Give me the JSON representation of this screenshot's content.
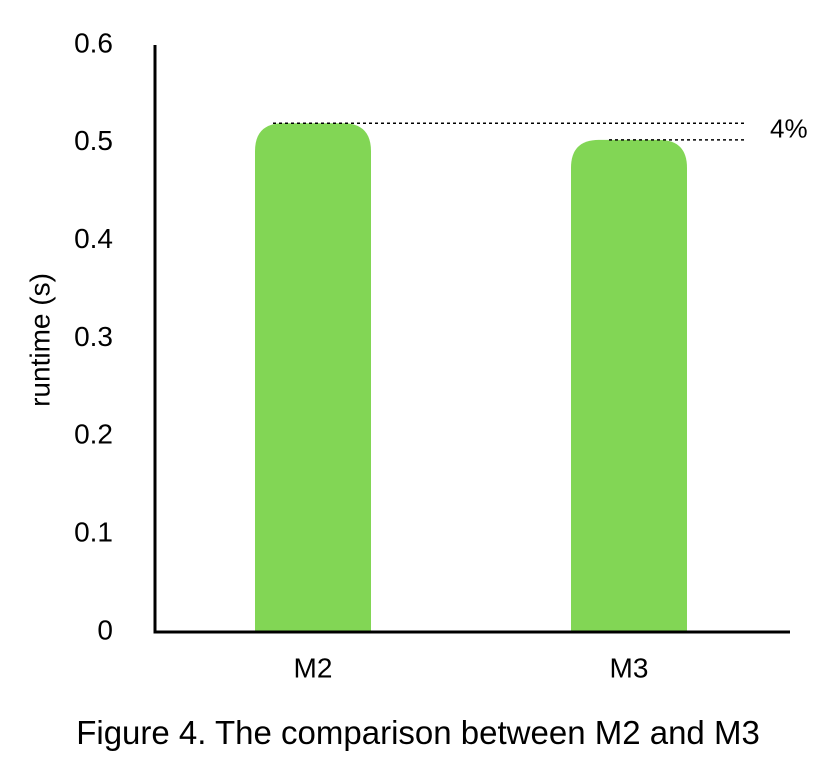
{
  "chart_data": {
    "type": "bar",
    "categories": [
      "M2",
      "M3"
    ],
    "values": [
      0.52,
      0.503
    ],
    "ylabel": "runtime (s)",
    "xlabel": "",
    "ylim": [
      0,
      0.6
    ],
    "yticks": [
      "0",
      "0.1",
      "0.2",
      "0.3",
      "0.4",
      "0.5",
      "0.6"
    ],
    "annotation": "4%",
    "grid": false,
    "legend": "none",
    "bar_color": "#82d655",
    "axis_color": "#000000"
  },
  "caption": "Figure 4. The comparison between M2 and M3"
}
